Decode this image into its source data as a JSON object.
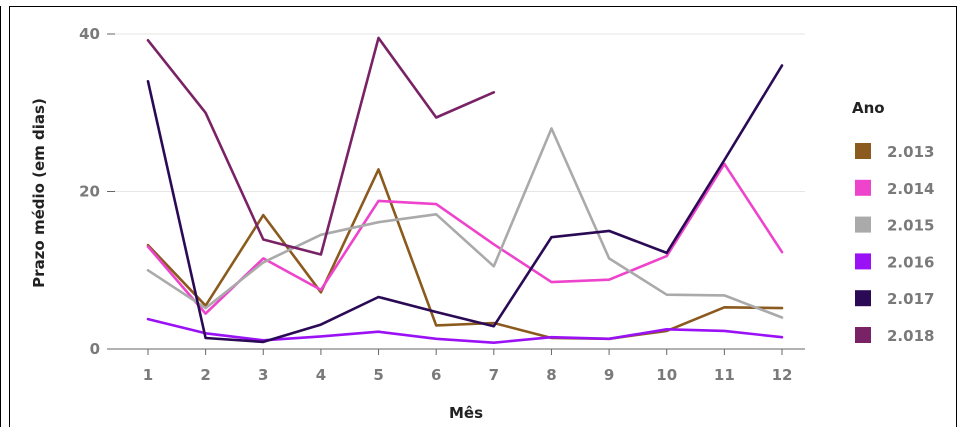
{
  "chart_data": {
    "type": "line",
    "xlabel": "Mês",
    "ylabel": "Prazo médio (em dias)",
    "x": [
      1,
      2,
      3,
      4,
      5,
      6,
      7,
      8,
      9,
      10,
      11,
      12
    ],
    "ylim": [
      0,
      40
    ],
    "yticks": [
      0,
      20,
      40
    ],
    "grid": true,
    "legend_title": "Ano",
    "legend_position": "right",
    "series": [
      {
        "name": "2.013",
        "color": "#8B5A1E",
        "values": [
          13.2,
          5.5,
          17.0,
          7.2,
          22.8,
          3.0,
          3.3,
          1.4,
          1.3,
          2.3,
          5.3,
          5.2
        ]
      },
      {
        "name": "2.014",
        "color": "#EE44CC",
        "values": [
          13.0,
          4.5,
          11.5,
          7.5,
          18.8,
          18.4,
          13.3,
          8.5,
          8.8,
          11.8,
          23.5,
          12.3
        ]
      },
      {
        "name": "2.015",
        "color": "#AAAAAA",
        "values": [
          10.0,
          5.2,
          11.0,
          14.5,
          16.1,
          17.1,
          10.5,
          28.0,
          11.5,
          6.9,
          6.8,
          4.0
        ]
      },
      {
        "name": "2.016",
        "color": "#9B11F5",
        "values": [
          3.8,
          2.0,
          1.1,
          1.6,
          2.2,
          1.3,
          0.8,
          1.5,
          1.3,
          2.5,
          2.3,
          1.5
        ]
      },
      {
        "name": "2.017",
        "color": "#2A0A55",
        "values": [
          34.0,
          1.4,
          0.9,
          3.1,
          6.6,
          4.7,
          2.9,
          14.2,
          15.0,
          12.2,
          24.0,
          36.0
        ]
      },
      {
        "name": "2.018",
        "color": "#7A2266",
        "values": [
          39.2,
          30.0,
          13.9,
          12.0,
          39.5,
          29.4,
          32.6,
          null,
          null,
          null,
          null,
          null
        ]
      }
    ]
  }
}
